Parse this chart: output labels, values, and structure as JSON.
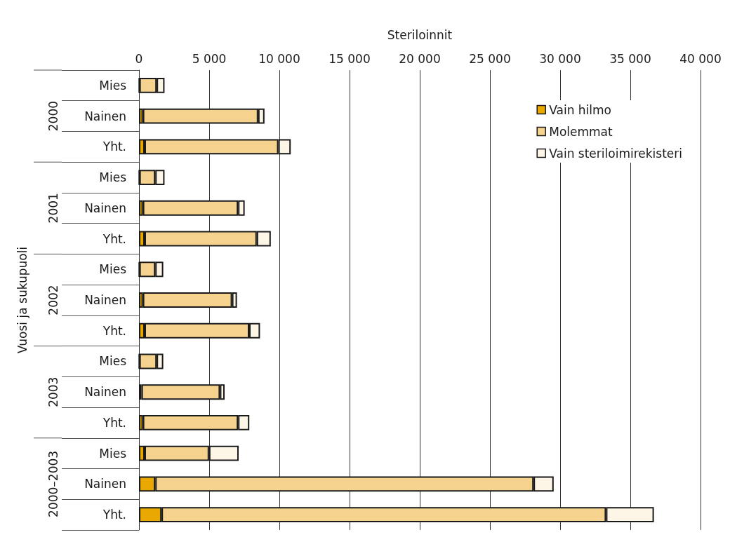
{
  "chart_data": {
    "type": "bar",
    "orientation": "horizontal",
    "stacked": true,
    "xlabel": "Steriloinnit",
    "ylabel": "Vuosi ja sukupuoli",
    "categories": [
      "Mies",
      "Nainen",
      "Yht.",
      "Mies",
      "Nainen",
      "Yht.",
      "Mies",
      "Nainen",
      "Yht.",
      "Mies",
      "Nainen",
      "Yht.",
      "Mies",
      "Nainen",
      "Yht."
    ],
    "annotations": [
      "2000",
      "2001",
      "2002",
      "2003",
      "2000–2003"
    ],
    "series": [
      {
        "name": "Vain hilmo",
        "color": "#e8a800",
        "values": [
          30,
          280,
          400,
          30,
          280,
          400,
          30,
          280,
          400,
          30,
          180,
          280,
          400,
          1160,
          1610
        ]
      },
      {
        "name": "Molemmat",
        "color": "#f5d38e",
        "values": [
          1230,
          8210,
          9530,
          1130,
          6780,
          7990,
          1130,
          6350,
          7450,
          1230,
          5590,
          6780,
          4590,
          26950,
          31660
        ]
      },
      {
        "name": "Vain steriloimirekisteri",
        "color": "#fdf5e6",
        "values": [
          560,
          450,
          880,
          660,
          470,
          1000,
          570,
          350,
          770,
          470,
          330,
          800,
          2110,
          1430,
          3410
        ]
      }
    ],
    "xlim": [
      0,
      40000
    ],
    "xticks": [
      0,
      {
        "value": 5000,
        "label": "5 000"
      },
      {
        "value": 10000,
        "label": "10 000"
      },
      {
        "value": 15000,
        "label": "15 000"
      },
      {
        "value": 20000,
        "label": "20 000"
      },
      {
        "value": 25000,
        "label": "25 000"
      },
      {
        "value": 30000,
        "label": "30 000"
      },
      {
        "value": 35000,
        "label": "35 000"
      },
      {
        "value": 40000,
        "label": "40 000"
      }
    ],
    "grid": "x",
    "legend": "top right"
  }
}
